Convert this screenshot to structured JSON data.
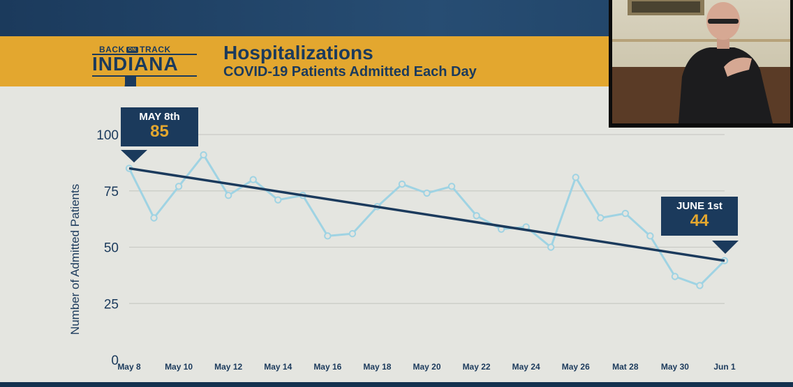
{
  "header": {
    "logo_top": "BACK",
    "logo_on": "ON",
    "logo_track": "TRACK",
    "logo_main": "INDIANA",
    "title": "Hospitalizations",
    "subtitle": "COVID-19 Patients Admitted Each Day"
  },
  "colors": {
    "navy": "#1b3a5c",
    "gold": "#e3a72f",
    "line": "#9fd3e3",
    "trend": "#1b3a5c",
    "grid": "#c9cac5"
  },
  "callouts": {
    "start": {
      "date": "MAY 8th",
      "value": "85"
    },
    "end": {
      "date": "JUNE 1st",
      "value": "44"
    }
  },
  "chart_data": {
    "type": "line",
    "title": "Hospitalizations",
    "subtitle": "COVID-19 Patients Admitted Each Day",
    "ylabel": "Number of Admitted Patients",
    "xlabel": "",
    "ylim": [
      0,
      100
    ],
    "yticks": [
      0,
      25,
      50,
      75,
      100
    ],
    "grid": true,
    "x": [
      "May 8",
      "May 9",
      "May 10",
      "May 11",
      "May 12",
      "May 13",
      "May 14",
      "May 15",
      "May 16",
      "May 17",
      "May 18",
      "May 19",
      "May 20",
      "May 21",
      "May 22",
      "May 23",
      "May 24",
      "May 25",
      "May 26",
      "May 27",
      "May 28",
      "May 29",
      "May 30",
      "May 31",
      "Jun 1"
    ],
    "xtick_labels": [
      "May 8",
      "May 10",
      "May 12",
      "May 14",
      "May 16",
      "May 18",
      "May 20",
      "May 22",
      "May 24",
      "May 26",
      "Mat 28",
      "May 30",
      "Jun 1"
    ],
    "series": [
      {
        "values": [
          85,
          63,
          77,
          91,
          73,
          80,
          71,
          73,
          55,
          56,
          68,
          78,
          74,
          77,
          64,
          58,
          59,
          50,
          81,
          63,
          65,
          55,
          37,
          33,
          44
        ]
      }
    ],
    "trendline": {
      "start": 85,
      "end": 44
    }
  }
}
